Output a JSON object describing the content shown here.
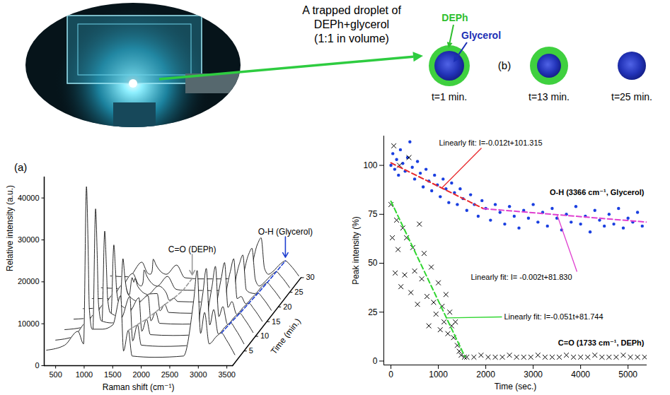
{
  "photo_caption": [
    "A trapped droplet of",
    "DEPh+glycerol",
    "(1:1 in volume)"
  ],
  "schematic": {
    "panel": "(b)",
    "shell_label": "DEPh",
    "core_label": "Glycerol",
    "snapshots": [
      "t=1 min.",
      "t=13 min.",
      "t=25 min."
    ]
  },
  "chart_data": [
    {
      "type": "waterfall",
      "panel": "(a)",
      "x_label": "Raman shift (cm⁻¹)",
      "y_label": "Relative intensity (a.u.)",
      "z_label": "Time (min.)",
      "xlim": [
        300,
        3600
      ],
      "xticks": [
        500,
        1000,
        1500,
        2000,
        2500,
        3000,
        3500
      ],
      "ylim": [
        0,
        45000
      ],
      "yticks": [
        0,
        10000,
        20000,
        30000,
        40000
      ],
      "zlim": [
        0,
        30
      ],
      "zticks": [
        5,
        10,
        15,
        20,
        25,
        30
      ],
      "x": [
        300,
        620,
        850,
        950,
        1000,
        1030,
        1050,
        1100,
        1280,
        1460,
        1600,
        1650,
        1733,
        1800,
        2200,
        2700,
        2880,
        2940,
        3000,
        3070,
        3150,
        3280,
        3366,
        3450,
        3600
      ],
      "spectra": [
        {
          "time": 1,
          "values": [
            3000,
            4200,
            7500,
            4500,
            42000,
            27000,
            13000,
            8000,
            8000,
            9000,
            16000,
            2800,
            7700,
            1600,
            1300,
            1600,
            15000,
            22000,
            7000,
            12000,
            4500,
            6300,
            7100,
            5500,
            1900
          ]
        },
        {
          "time": 5,
          "values": [
            2600,
            3500,
            6900,
            4000,
            33900,
            22100,
            11500,
            7200,
            6700,
            8000,
            13000,
            2400,
            6300,
            1400,
            1100,
            1400,
            13800,
            19700,
            6200,
            9900,
            4100,
            5900,
            6700,
            5200,
            1700
          ]
        },
        {
          "time": 9,
          "values": [
            2300,
            2900,
            6300,
            3500,
            25800,
            17100,
            9900,
            6300,
            5400,
            6900,
            9900,
            1900,
            4800,
            1100,
            900,
            1200,
            12600,
            17400,
            5400,
            7800,
            3600,
            5400,
            6200,
            4800,
            1600
          ]
        },
        {
          "time": 13,
          "values": [
            2000,
            2400,
            5800,
            3000,
            19700,
            13400,
            8700,
            5600,
            4400,
            6100,
            7600,
            1600,
            3700,
            1000,
            800,
            1000,
            11600,
            15500,
            4800,
            6200,
            3200,
            5000,
            5800,
            4500,
            1500
          ]
        },
        {
          "time": 17,
          "values": [
            1700,
            1900,
            5300,
            2600,
            13600,
            9600,
            7400,
            4900,
            3400,
            5200,
            5300,
            1200,
            2700,
            800,
            600,
            900,
            10500,
            13600,
            4100,
            4600,
            2900,
            4600,
            5400,
            4200,
            1300
          ]
        },
        {
          "time": 21,
          "values": [
            1300,
            1300,
            4800,
            2200,
            6300,
            5200,
            6100,
            4200,
            2300,
            4300,
            2600,
            900,
            1400,
            600,
            500,
            700,
            9600,
            11700,
            3400,
            2700,
            2500,
            4300,
            5100,
            3900,
            1200
          ]
        },
        {
          "time": 25,
          "values": [
            1100,
            900,
            4500,
            1900,
            1500,
            2300,
            5300,
            3800,
            1500,
            3800,
            800,
            600,
            500,
            500,
            400,
            600,
            9000,
            10500,
            3000,
            1500,
            2300,
            4100,
            4900,
            3800,
            1100
          ]
        },
        {
          "time": 29,
          "values": [
            1100,
            900,
            4400,
            1800,
            1500,
            2200,
            5100,
            3700,
            1500,
            3700,
            700,
            600,
            500,
            400,
            400,
            600,
            8800,
            10200,
            2900,
            1500,
            2200,
            4000,
            4700,
            3700,
            1100
          ]
        }
      ],
      "annotations": [
        {
          "text": "C=O (DEPh)",
          "x": 1733,
          "color": "#9a9a9a",
          "line_style": "dashed"
        },
        {
          "text": "O-H (Glycerol)",
          "x": 3366,
          "color": "#1f3fd0",
          "line_style": "dashed"
        }
      ]
    },
    {
      "type": "scatter",
      "x_label": "Time (sec.)",
      "y_label": "Peak intensity (%)",
      "xlim": [
        -150,
        5400
      ],
      "xticks": [
        0,
        1000,
        2000,
        3000,
        4000,
        5000
      ],
      "ylim": [
        -2,
        115
      ],
      "yticks": [
        0,
        25,
        50,
        75,
        100
      ],
      "series": [
        {
          "name": "O-H (3366 cm⁻¹, Glycerol)",
          "color": "#1a3fe0",
          "marker": "circle",
          "x": [
            0,
            40,
            80,
            120,
            160,
            200,
            250,
            300,
            350,
            400,
            450,
            500,
            560,
            620,
            680,
            740,
            800,
            860,
            920,
            980,
            1040,
            1100,
            1160,
            1220,
            1280,
            1340,
            1400,
            1460,
            1520,
            1600,
            1680,
            1760,
            1840,
            1920,
            2000,
            2100,
            2200,
            2300,
            2400,
            2500,
            2600,
            2700,
            2800,
            2900,
            3000,
            3100,
            3200,
            3300,
            3400,
            3500,
            3600,
            3700,
            3800,
            3900,
            4000,
            4100,
            4200,
            4300,
            4400,
            4500,
            4600,
            4700,
            4800,
            4900,
            5000,
            5100,
            5200,
            5300
          ],
          "values": [
            100,
            106,
            98,
            103,
            95,
            108,
            101,
            97,
            104,
            112,
            99,
            93,
            102,
            96,
            89,
            98,
            92,
            87,
            95,
            90,
            84,
            93,
            88,
            81,
            91,
            86,
            80,
            88,
            83,
            77,
            85,
            80,
            74,
            82,
            78,
            72,
            80,
            76,
            70,
            79,
            74,
            68,
            77,
            73,
            80,
            71,
            76,
            69,
            78,
            73,
            67,
            75,
            71,
            79,
            70,
            74,
            66,
            77,
            72,
            69,
            75,
            70,
            78,
            68,
            73,
            71,
            76,
            69
          ]
        },
        {
          "name": "C=O (1733 cm⁻¹, DEPh)",
          "color": "#000000",
          "marker": "x",
          "x": [
            0,
            30,
            60,
            90,
            120,
            150,
            180,
            210,
            250,
            290,
            330,
            380,
            420,
            460,
            500,
            560,
            600,
            650,
            700,
            760,
            800,
            850,
            900,
            950,
            1000,
            1040,
            1080,
            1120,
            1160,
            1200,
            1240,
            1280,
            1320,
            1360,
            1400,
            1440,
            1480,
            1550,
            1600,
            1750,
            1900,
            2050,
            2200,
            2350,
            2500,
            2650,
            2800,
            2950,
            3100,
            3250,
            3400,
            3550,
            3700,
            3850,
            4000,
            4150,
            4300,
            4450,
            4600,
            4750,
            4900,
            5050,
            5200,
            5350
          ],
          "values": [
            80,
            63,
            110,
            45,
            72,
            57,
            100,
            38,
            68,
            44,
            63,
            104,
            35,
            58,
            46,
            29,
            70,
            42,
            55,
            33,
            18,
            48,
            30,
            24,
            40,
            16,
            28,
            20,
            34,
            14,
            25,
            18,
            12,
            20,
            8,
            5,
            3,
            2,
            2,
            2,
            3,
            2,
            2,
            2,
            3,
            2,
            2,
            2,
            3,
            2,
            2,
            2,
            3,
            2,
            2,
            2,
            3,
            2,
            2,
            2,
            3,
            2,
            2,
            2
          ]
        }
      ],
      "fits": [
        {
          "label": "Linearly fit: I=-0.012t+101.315",
          "color": "#e8272b",
          "line_style": "dashed",
          "x": [
            0,
            1950
          ],
          "values": [
            101.3,
            77.9
          ]
        },
        {
          "label": "Linearly fit: I= -0.002t+81.830",
          "color": "#e040d0",
          "line_style": "dashed",
          "x": [
            1950,
            5400
          ],
          "values": [
            77.9,
            71.0
          ]
        },
        {
          "label": "Linearly fit: I=-0.051t+81.744",
          "color": "#2fd62f",
          "line_style": "dashed",
          "x": [
            0,
            1560
          ],
          "values": [
            81.7,
            2.2
          ]
        }
      ]
    }
  ]
}
